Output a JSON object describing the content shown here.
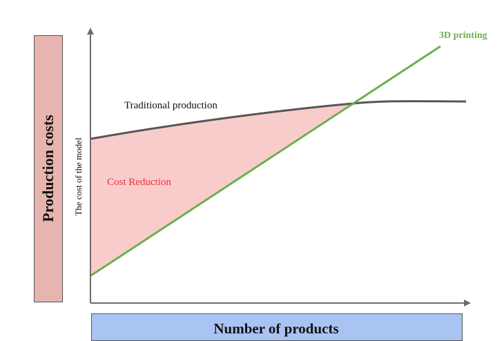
{
  "labels": {
    "production_costs": "Production costs",
    "number_of_products": "Number of products",
    "cost_of_model": "The cost of the model",
    "traditional_production": "Traditional production",
    "cost_reduction": "Cost Reduction",
    "printing_3d": "3D printing"
  },
  "colors": {
    "side_box": "#e8b4b0",
    "bottom_box": "#a9c3f2",
    "cost_region_fill": "#f9cccc",
    "traditional_line": "#555555",
    "printing_line": "#6ab04c",
    "cost_reduction_text": "#e8323c",
    "axis": "#6b6b6b"
  }
}
